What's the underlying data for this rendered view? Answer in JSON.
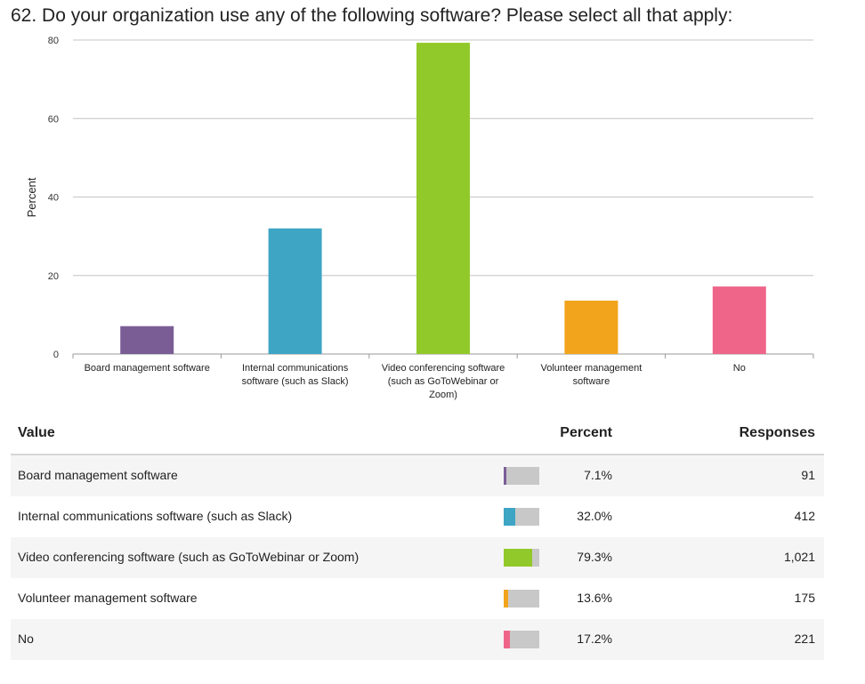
{
  "question": "62. Do your organization use any of the following software? Please select all that apply:",
  "chart_data": {
    "type": "bar",
    "ylabel": "Percent",
    "ylim": [
      0,
      80
    ],
    "yticks": [
      "0",
      "20",
      "40",
      "60",
      "80"
    ],
    "grid": true,
    "categories": [
      [
        "Board management software"
      ],
      [
        "Internal communications",
        "software (such as Slack)"
      ],
      [
        "Video conferencing software",
        "(such as GoToWebinar or",
        "Zoom)"
      ],
      [
        "Volunteer management",
        "software"
      ],
      [
        "No"
      ]
    ],
    "values": [
      7.1,
      32.0,
      79.3,
      13.6,
      17.2
    ],
    "colors": [
      "#7b5d96",
      "#3ea5c4",
      "#92c92a",
      "#f2a41c",
      "#ef6589"
    ]
  },
  "table": {
    "headers": {
      "value": "Value",
      "percent": "Percent",
      "responses": "Responses"
    },
    "rows": [
      {
        "value": "Board management software",
        "percent": "7.1%",
        "pct_num": 7.1,
        "responses": "91",
        "color": "#7b5d96"
      },
      {
        "value": "Internal communications software (such as Slack)",
        "percent": "32.0%",
        "pct_num": 32.0,
        "responses": "412",
        "color": "#3ea5c4"
      },
      {
        "value": "Video conferencing software (such as GoToWebinar or Zoom)",
        "percent": "79.3%",
        "pct_num": 79.3,
        "responses": "1,021",
        "color": "#92c92a"
      },
      {
        "value": "Volunteer management software",
        "percent": "13.6%",
        "pct_num": 13.6,
        "responses": "175",
        "color": "#f2a41c"
      },
      {
        "value": "No",
        "percent": "17.2%",
        "pct_num": 17.2,
        "responses": "221",
        "color": "#ef6589"
      }
    ]
  }
}
